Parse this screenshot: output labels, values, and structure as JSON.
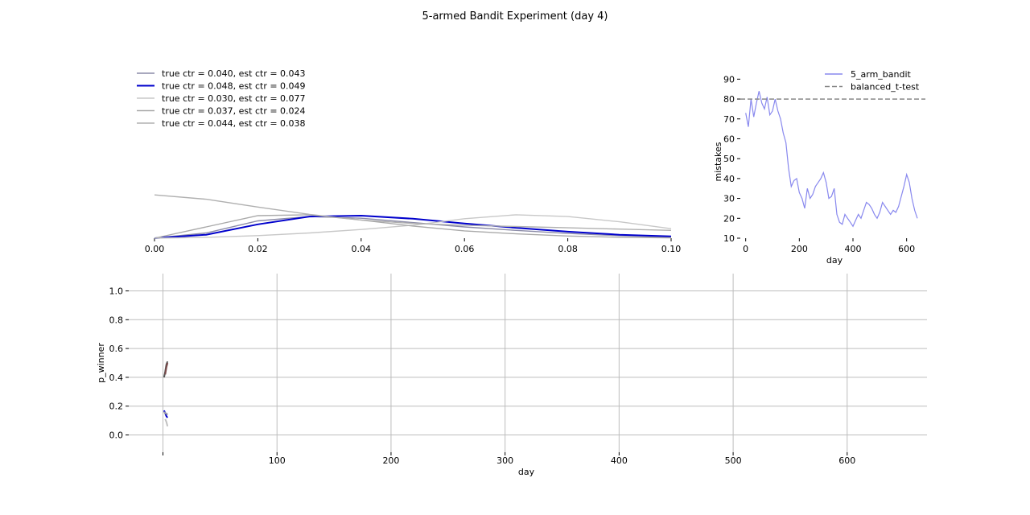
{
  "title": "5-armed Bandit Experiment (day 4)",
  "chart_data": [
    {
      "type": "line",
      "xlabel": "",
      "ylabel": "",
      "xlim": [
        0,
        0.1
      ],
      "ylim": [
        0,
        0.42
      ],
      "xticks": [
        "0.00",
        "0.02",
        "0.04",
        "0.06",
        "0.08",
        "0.10"
      ],
      "grid": false,
      "legend_placement": "top-left",
      "series": [
        {
          "name": "true ctr = 0.040, est ctr = 0.043",
          "color": "#8c8ca8",
          "x": [
            0,
            0.01,
            0.02,
            0.03,
            0.04,
            0.05,
            0.06,
            0.07,
            0.08,
            0.09,
            0.1
          ],
          "y": [
            0,
            0.012,
            0.04,
            0.05,
            0.046,
            0.036,
            0.026,
            0.018,
            0.011,
            0.006,
            0.003
          ]
        },
        {
          "name": "true ctr = 0.048, est ctr = 0.049",
          "color": "#0000cc",
          "x": [
            0,
            0.01,
            0.02,
            0.03,
            0.04,
            0.05,
            0.06,
            0.07,
            0.08,
            0.09,
            0.1
          ],
          "y": [
            0,
            0.008,
            0.032,
            0.05,
            0.052,
            0.045,
            0.034,
            0.024,
            0.015,
            0.008,
            0.004
          ]
        },
        {
          "name": "true ctr = 0.030, est ctr = 0.077",
          "color": "#c8c8c8",
          "x": [
            0,
            0.01,
            0.02,
            0.03,
            0.04,
            0.05,
            0.06,
            0.07,
            0.08,
            0.09,
            0.1
          ],
          "y": [
            0,
            0.002,
            0.006,
            0.012,
            0.02,
            0.03,
            0.045,
            0.054,
            0.05,
            0.038,
            0.022
          ]
        },
        {
          "name": "true ctr = 0.037, est ctr = 0.024",
          "color": "#aaaaaa",
          "x": [
            0,
            0.01,
            0.02,
            0.03,
            0.04,
            0.05,
            0.06,
            0.07,
            0.08,
            0.09,
            0.1
          ],
          "y": [
            0,
            0.026,
            0.052,
            0.054,
            0.042,
            0.028,
            0.017,
            0.01,
            0.005,
            0.002,
            0.001
          ]
        },
        {
          "name": "true ctr = 0.044, est ctr = 0.038",
          "color": "#b0b0b0",
          "x": [
            0,
            0.01,
            0.02,
            0.03,
            0.04,
            0.05,
            0.06,
            0.07,
            0.08,
            0.09,
            0.1
          ],
          "y": [
            0.1,
            0.09,
            0.072,
            0.055,
            0.042,
            0.034,
            0.03,
            0.027,
            0.024,
            0.021,
            0.018
          ]
        }
      ]
    },
    {
      "type": "line",
      "xlabel": "day",
      "ylabel": "mistakes",
      "xlim": [
        -20,
        670
      ],
      "ylim": [
        10,
        95
      ],
      "xticks": [
        0,
        200,
        400,
        600
      ],
      "yticks": [
        10,
        20,
        30,
        40,
        50,
        60,
        70,
        80,
        90
      ],
      "grid": false,
      "legend_placement": "top-right",
      "series": [
        {
          "name": "5_arm_bandit",
          "color": "#8888ee",
          "x": [
            0,
            10,
            20,
            30,
            40,
            50,
            60,
            70,
            80,
            90,
            100,
            110,
            120,
            130,
            140,
            150,
            160,
            170,
            180,
            190,
            200,
            210,
            220,
            230,
            240,
            250,
            260,
            270,
            280,
            290,
            300,
            310,
            320,
            330,
            340,
            350,
            360,
            370,
            380,
            390,
            400,
            410,
            420,
            430,
            440,
            450,
            460,
            470,
            480,
            490,
            500,
            510,
            520,
            530,
            540,
            550,
            560,
            570,
            580,
            590,
            600,
            610,
            620,
            630,
            640
          ],
          "y": [
            73,
            66,
            80,
            71,
            78,
            84,
            78,
            75,
            81,
            72,
            74,
            80,
            74,
            70,
            63,
            58,
            45,
            36,
            39,
            40,
            33,
            30,
            25,
            35,
            30,
            32,
            36,
            38,
            40,
            43,
            38,
            30,
            31,
            35,
            22,
            18,
            17,
            22,
            20,
            18,
            16,
            19,
            22,
            20,
            24,
            28,
            27,
            25,
            22,
            20,
            23,
            28,
            26,
            24,
            22,
            24,
            23,
            26,
            31,
            36,
            42,
            38,
            30,
            24,
            20
          ]
        },
        {
          "name": "balanced_t-test",
          "color": "#888888",
          "dashed": true,
          "x": [
            -20,
            670
          ],
          "y": [
            80,
            80
          ]
        }
      ]
    },
    {
      "type": "line",
      "xlabel": "day",
      "ylabel": "p_winner",
      "xlim": [
        -30,
        670
      ],
      "ylim": [
        -0.12,
        1.12
      ],
      "xticks": [
        0,
        100,
        200,
        300,
        400,
        500,
        600
      ],
      "xtick_labels": [
        "",
        "100",
        "200",
        "300",
        "400",
        "500",
        "600"
      ],
      "yticks": [
        "0.0",
        "0.2",
        "0.4",
        "0.6",
        "0.8",
        "1.0"
      ],
      "grid": true,
      "series": [
        {
          "name": "",
          "color": "#555555",
          "x": [
            1,
            2,
            3,
            4
          ],
          "y": [
            0.4,
            0.44,
            0.49,
            0.51
          ]
        },
        {
          "name": "",
          "color": "#7a4a4a",
          "x": [
            2,
            3,
            4
          ],
          "y": [
            0.42,
            0.47,
            0.5
          ]
        },
        {
          "name": "",
          "color": "#0000cc",
          "x": [
            1,
            2,
            3,
            4
          ],
          "y": [
            0.17,
            0.15,
            0.13,
            0.12
          ]
        },
        {
          "name": "",
          "color": "#9999aa",
          "x": [
            1,
            2,
            3,
            4
          ],
          "y": [
            0.16,
            0.15,
            0.15,
            0.14
          ]
        },
        {
          "name": "",
          "color": "#c0c0c0",
          "x": [
            2,
            3,
            4
          ],
          "y": [
            0.11,
            0.09,
            0.06
          ]
        }
      ]
    }
  ]
}
